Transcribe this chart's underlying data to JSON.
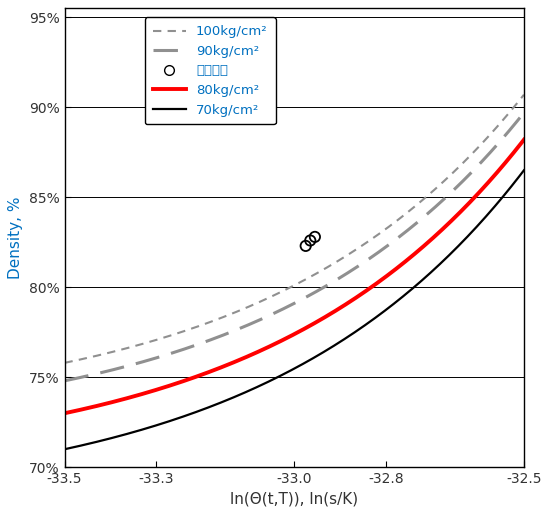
{
  "xlabel": "ln(Θ(t,T)), ln(s/K)",
  "ylabel": "Density, %",
  "xlim": [
    -33.5,
    -32.5
  ],
  "ylim": [
    0.7,
    0.955
  ],
  "yticks": [
    0.7,
    0.75,
    0.8,
    0.85,
    0.9,
    0.95
  ],
  "ytick_labels": [
    "70%",
    "75%",
    "80%",
    "85%",
    "90%",
    "95%"
  ],
  "xticks": [
    -33.5,
    -33.3,
    -33.0,
    -32.8,
    -32.5
  ],
  "xtick_labels": [
    "-33.5",
    "-33.3",
    "-33.0",
    "-32.8",
    "-32.5"
  ],
  "curve_100_color": "#909090",
  "curve_90_color": "#909090",
  "curve_80_color": "#ff0000",
  "curve_70_color": "#000000",
  "legend_labels": [
    "100kg/cm²",
    "90kg/cm²",
    "우서실측",
    "80kg/cm²",
    "70kg/cm²"
  ],
  "scatter_x": [
    -32.975,
    -32.955,
    -32.965
  ],
  "scatter_y": [
    0.823,
    0.828,
    0.826
  ],
  "label_color": "#0070c0",
  "curve_points": {
    "70": {
      "xl": -33.5,
      "xr": -32.5,
      "dl": 0.71,
      "dr": 0.865
    },
    "80": {
      "xl": -33.5,
      "xr": -32.5,
      "dl": 0.73,
      "dr": 0.882
    },
    "90": {
      "xl": -33.5,
      "xr": -32.5,
      "dl": 0.748,
      "dr": 0.897
    },
    "100": {
      "xl": -33.5,
      "xr": -32.5,
      "dl": 0.758,
      "dr": 0.907
    }
  },
  "curve_C": 1.8
}
